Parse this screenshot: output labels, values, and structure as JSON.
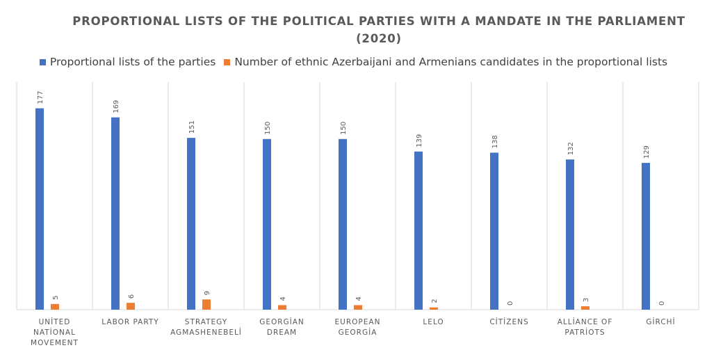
{
  "chart_data": {
    "type": "bar",
    "title": "PROPORTIONAL LISTS OF THE POLITICAL PARTIES WITH A MANDATE IN THE PARLIAMENT (2020)",
    "categories": [
      "UNİTED NATİONAL MOVEMENT",
      "LABOR PARTY",
      "STRATEGY AGMASHENEBELİ",
      "GEORGİAN DREAM",
      "EUROPEAN GEORGİA",
      "LELO",
      "CİTİZENS",
      "ALLİANCE OF PATRİOTS",
      "GİRCHİ"
    ],
    "category_lines": [
      [
        "UNİTED",
        "NATİONAL",
        "MOVEMENT"
      ],
      [
        "LABOR PARTY"
      ],
      [
        "STRATEGY",
        "AGMASHENEBELİ"
      ],
      [
        "GEORGİAN",
        "DREAM"
      ],
      [
        "EUROPEAN",
        "GEORGİA"
      ],
      [
        "LELO"
      ],
      [
        "CİTİZENS"
      ],
      [
        "ALLİANCE OF",
        "PATRİOTS"
      ],
      [
        "GİRCHİ"
      ]
    ],
    "series": [
      {
        "name": "Proportional lists of the parties",
        "color": "#4472C4",
        "values": [
          177,
          169,
          151,
          150,
          150,
          139,
          138,
          132,
          129
        ]
      },
      {
        "name": "Number of ethnic Azerbaijani and Armenians candidates in the proportional lists",
        "color": "#ED7D31",
        "values": [
          5,
          6,
          9,
          4,
          4,
          2,
          0,
          3,
          0
        ]
      }
    ],
    "xlabel": "",
    "ylabel": "",
    "ylim": [
      0,
      200
    ],
    "grid": "vertical category separators",
    "legend": "top"
  }
}
